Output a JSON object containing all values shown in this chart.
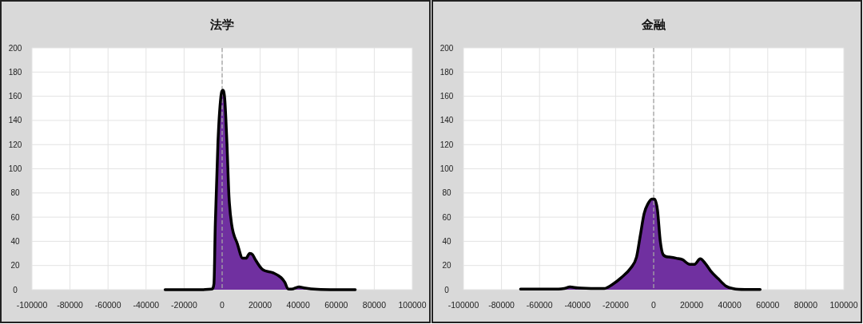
{
  "chart_data": [
    {
      "type": "area",
      "title": "法学",
      "xlim": [
        -100000,
        100000
      ],
      "xticks": [
        -100000,
        -80000,
        -60000,
        -40000,
        -20000,
        0,
        20000,
        40000,
        60000,
        80000,
        100000
      ],
      "ylim": [
        0,
        200
      ],
      "yticks": [
        0,
        20,
        40,
        60,
        80,
        100,
        120,
        140,
        160,
        180,
        200
      ],
      "grid": true,
      "ref_lines": [
        {
          "axis": "x",
          "value": 0,
          "color": "#a6a6a6",
          "line_style": "dashed"
        }
      ],
      "series": [
        {
          "color": "#7030a0",
          "x": [
            -30000,
            -10000,
            -5500,
            -4300,
            -3600,
            -2200,
            -700,
            400,
            1400,
            2500,
            3600,
            5000,
            8000,
            10800,
            12500,
            14500,
            16000,
            17400,
            21000,
            26800,
            31000,
            33000,
            34600,
            36500,
            40400,
            43000,
            50000,
            60000,
            70000
          ],
          "values": [
            0,
            0,
            0.5,
            5,
            54,
            122,
            159,
            165,
            157,
            122,
            77,
            54,
            38,
            26,
            26,
            30,
            29,
            25,
            17,
            14,
            10,
            6,
            0.7,
            0.5,
            2.3,
            1.5,
            0.3,
            0,
            0
          ]
        }
      ]
    },
    {
      "type": "area",
      "title": "金融",
      "xlim": [
        -100000,
        100000
      ],
      "xticks": [
        -100000,
        -80000,
        -60000,
        -40000,
        -20000,
        0,
        20000,
        40000,
        60000,
        80000,
        100000
      ],
      "ylim": [
        0,
        200
      ],
      "yticks": [
        0,
        20,
        40,
        60,
        80,
        100,
        120,
        140,
        160,
        180,
        200
      ],
      "grid": true,
      "ref_lines": [
        {
          "axis": "x",
          "value": 0,
          "color": "#a6a6a6",
          "line_style": "dashed"
        }
      ],
      "series": [
        {
          "color": "#7030a0",
          "x": [
            -70000,
            -50000,
            -47000,
            -44000,
            -40000,
            -30000,
            -26000,
            -22000,
            -17000,
            -12000,
            -9000,
            -7000,
            -5000,
            -3000,
            -1000,
            500,
            2000,
            3500,
            5000,
            8000,
            12000,
            15000,
            19000,
            21500,
            24500,
            27000,
            30000,
            34000,
            38000,
            42000,
            48000,
            56000
          ],
          "values": [
            0.5,
            0.5,
            1,
            2.3,
            1.5,
            1,
            1,
            4,
            10,
            18,
            27,
            45,
            63,
            71,
            75,
            75,
            66,
            40,
            29,
            27,
            26,
            25,
            21,
            21,
            25.5,
            22,
            15.5,
            9,
            3,
            0.8,
            0.2,
            0.2
          ]
        }
      ]
    }
  ]
}
